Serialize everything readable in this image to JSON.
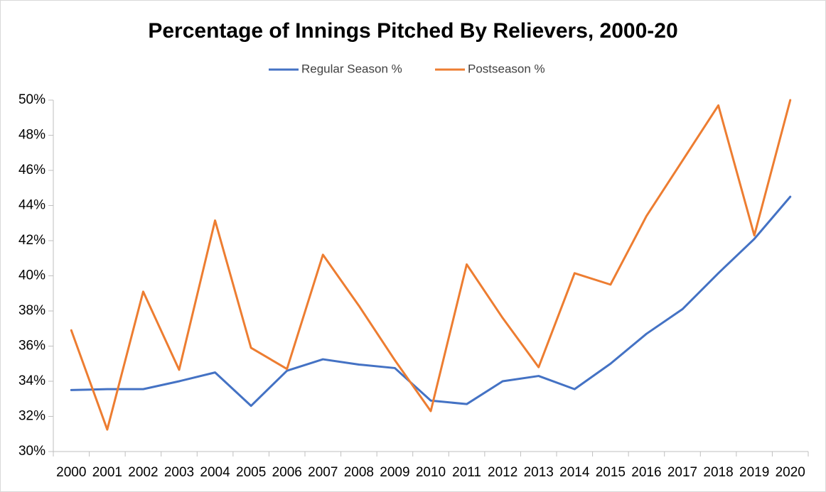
{
  "chart_data": {
    "type": "line",
    "title": "Percentage of Innings Pitched By Relievers, 2000-20",
    "categories": [
      "2000",
      "2001",
      "2002",
      "2003",
      "2004",
      "2005",
      "2006",
      "2007",
      "2008",
      "2009",
      "2010",
      "2011",
      "2012",
      "2013",
      "2014",
      "2015",
      "2016",
      "2017",
      "2018",
      "2019",
      "2020"
    ],
    "series": [
      {
        "name": "Regular Season %",
        "color": "#4472c4",
        "values": [
          33.5,
          33.55,
          33.55,
          34.0,
          34.5,
          32.6,
          34.6,
          35.25,
          34.95,
          34.75,
          32.9,
          32.7,
          34.0,
          34.3,
          33.55,
          35.0,
          36.7,
          38.1,
          40.15,
          42.1,
          44.5
        ]
      },
      {
        "name": "Postseason %",
        "color": "#ed7d31",
        "values": [
          36.9,
          31.25,
          39.1,
          34.65,
          43.15,
          35.9,
          34.7,
          41.2,
          38.3,
          35.2,
          32.3,
          40.65,
          37.6,
          34.8,
          40.15,
          39.5,
          43.4,
          46.55,
          49.7,
          42.3,
          50.0
        ]
      }
    ],
    "ylim": [
      30,
      50
    ],
    "yticks": [
      {
        "value": 30,
        "label": "30%"
      },
      {
        "value": 32,
        "label": "32%"
      },
      {
        "value": 34,
        "label": "34%"
      },
      {
        "value": 36,
        "label": "36%"
      },
      {
        "value": 38,
        "label": "38%"
      },
      {
        "value": 40,
        "label": "40%"
      },
      {
        "value": 42,
        "label": "42%"
      },
      {
        "value": 44,
        "label": "44%"
      },
      {
        "value": 46,
        "label": "46%"
      },
      {
        "value": 48,
        "label": "48%"
      },
      {
        "value": 50,
        "label": "50%"
      }
    ],
    "grid": false,
    "legend": "top"
  }
}
